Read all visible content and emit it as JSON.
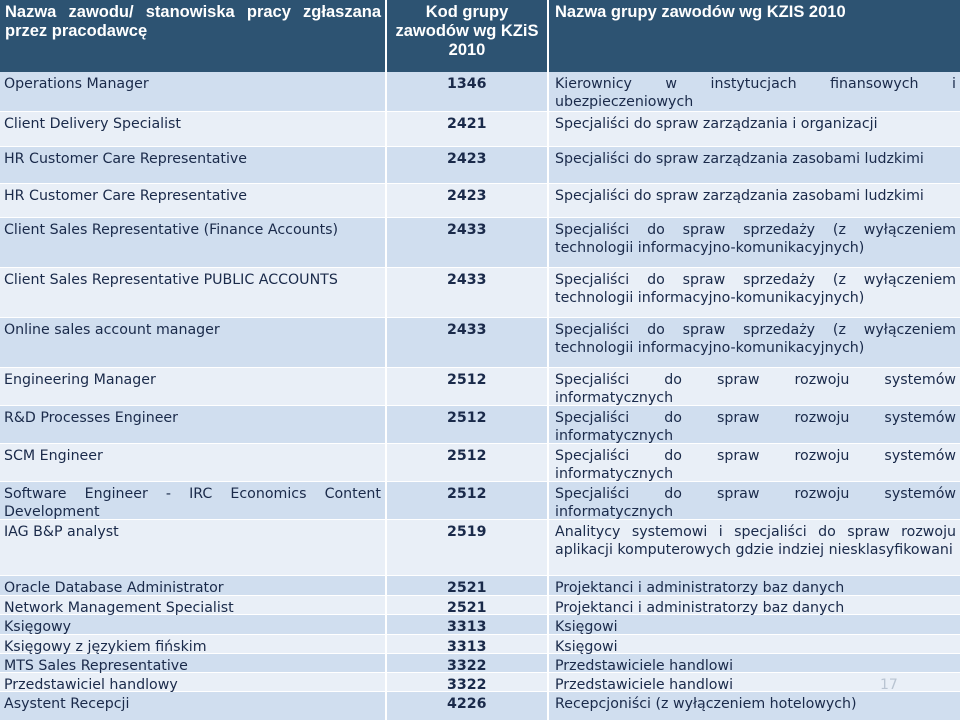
{
  "headers": [
    "Nazwa zawodu/ stanowiska pracy zgłaszana przez pracodawcę",
    "Kod grupy zawodów wg KZiS 2010",
    "Nazwa grupy zawodów wg KZIS 2010"
  ],
  "rows": [
    [
      "Operations Manager",
      "1346",
      "Kierownicy w instytucjach finansowych i ubezpieczeniowych"
    ],
    [
      "Client Delivery Specialist",
      "2421",
      "Specjaliści do spraw zarządzania i organizacji"
    ],
    [
      "HR Customer Care Representative",
      "2423",
      "Specjaliści do spraw zarządzania zasobami ludzkimi"
    ],
    [
      "HR Customer Care Representative",
      "2423",
      "Specjaliści do spraw zarządzania zasobami ludzkimi"
    ],
    [
      "Client Sales Representative (Finance Accounts)",
      "2433",
      "Specjaliści do spraw sprzedaży (z wyłączeniem technologii informacyjno-komunikacyjnych)"
    ],
    [
      "Client Sales Representative PUBLIC ACCOUNTS",
      "2433",
      "Specjaliści do spraw sprzedaży (z wyłączeniem technologii informacyjno-komunikacyjnych)"
    ],
    [
      "Online sales account manager",
      "2433",
      "Specjaliści do spraw sprzedaży (z wyłączeniem technologii informacyjno-komunikacyjnych)"
    ],
    [
      "Engineering Manager",
      "2512",
      "Specjaliści do spraw rozwoju systemów informatycznych"
    ],
    [
      "R&D Processes Engineer",
      "2512",
      "Specjaliści do spraw rozwoju systemów informatycznych"
    ],
    [
      "SCM Engineer",
      "2512",
      "Specjaliści do spraw rozwoju systemów informatycznych"
    ],
    [
      "Software Engineer - IRC Economics Content Development",
      "2512",
      "Specjaliści do spraw rozwoju systemów informatycznych"
    ],
    [
      "IAG B&P analyst",
      "2519",
      "Analitycy systemowi i specjaliści do spraw rozwoju aplikacji komputerowych gdzie indziej niesklasyfikowani"
    ],
    [
      "Oracle Database Administrator",
      "2521",
      "Projektanci i administratorzy baz danych"
    ],
    [
      "Network Management Specialist",
      "2521",
      "Projektanci i administratorzy baz danych"
    ],
    [
      "Księgowy",
      "3313",
      "Księgowi"
    ],
    [
      "Księgowy z językiem fińskim",
      "3313",
      "Księgowi"
    ],
    [
      "MTS Sales Representative",
      "3322",
      "Przedstawiciele handlowi"
    ],
    [
      "Przedstawiciel handlowy",
      "3322",
      "Przedstawiciele handlowi"
    ],
    [
      "Asystent Recepcji",
      "4226",
      "Recepcjoniści (z wyłączeniem hotelowych)"
    ]
  ],
  "page_number": "17",
  "colors": {
    "header_bg": "#2d5372",
    "header_text": "#ffffff",
    "row_even_bg": "#d0deef",
    "row_odd_bg": "#e9eff7",
    "cell_text": "#1a2a4a"
  }
}
